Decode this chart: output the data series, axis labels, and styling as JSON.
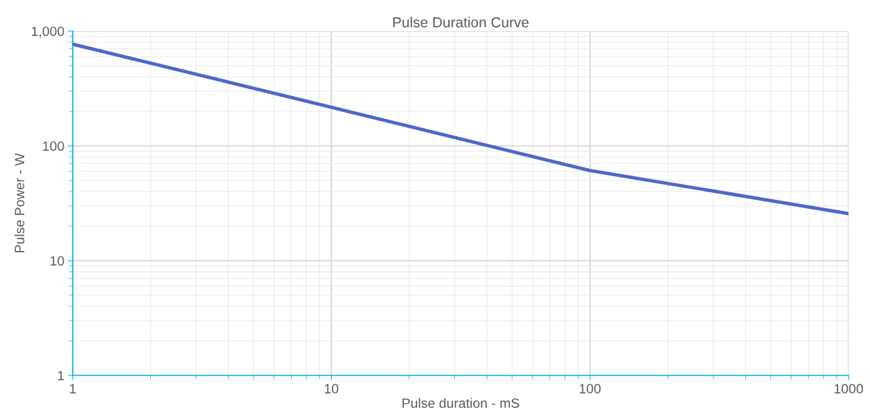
{
  "chart_data": {
    "type": "line",
    "title": "Pulse Duration Curve",
    "xlabel": "Pulse duration - mS",
    "ylabel": "Pulse Power - W",
    "log": "xy",
    "grid": true,
    "legend": false,
    "marker": "none",
    "line_style": "solid",
    "xlim": [
      1,
      1000
    ],
    "xticks": [
      1,
      10,
      100,
      1000
    ],
    "ylim": [
      1,
      1000
    ],
    "yticks": [
      1,
      10,
      100,
      {
        "value": 1000,
        "label": "1,000"
      }
    ],
    "x": [
      1,
      10,
      100,
      1000
    ],
    "series": [
      {
        "color": "#4f67c9",
        "values": [
          769,
          217,
          61,
          25.7
        ]
      }
    ]
  }
}
